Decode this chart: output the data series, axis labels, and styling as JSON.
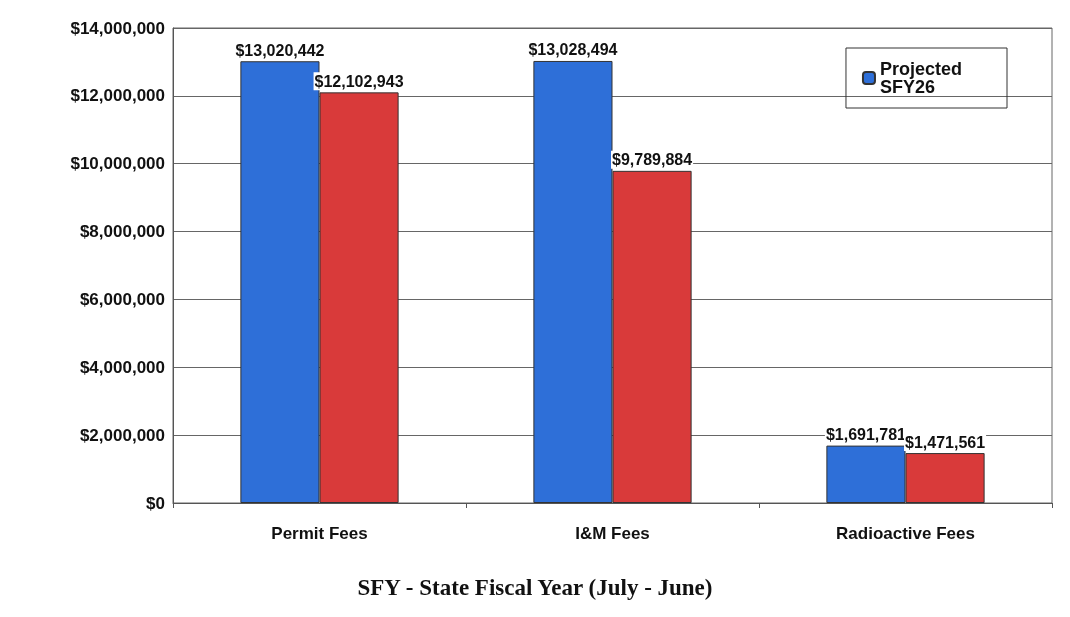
{
  "chart_data": {
    "type": "bar",
    "xlabel": "SFY - State Fiscal Year (July - June)",
    "categories": [
      "Permit Fees",
      "I&M Fees",
      "Radioactive Fees"
    ],
    "series": [
      {
        "name": "Projected SFY26",
        "color": "#2e6fd8",
        "values": [
          13020442,
          13028494,
          1691781
        ],
        "value_labels": [
          "$13,020,442",
          "$13,028,494",
          "$1,691,781"
        ]
      },
      {
        "color": "#d93a3a",
        "values": [
          12102943,
          9789884,
          1471561
        ],
        "value_labels": [
          "$12,102,943",
          "$9,789,884",
          "$1,471,561"
        ]
      }
    ],
    "ylim": [
      0,
      14000000
    ],
    "yticks": [
      {
        "value": 0,
        "label": "$0"
      },
      {
        "value": 2000000,
        "label": "$2,000,000"
      },
      {
        "value": 4000000,
        "label": "$4,000,000"
      },
      {
        "value": 6000000,
        "label": "$6,000,000"
      },
      {
        "value": 8000000,
        "label": "$8,000,000"
      },
      {
        "value": 10000000,
        "label": "$10,000,000"
      },
      {
        "value": 12000000,
        "label": "$12,000,000"
      },
      {
        "value": 14000000,
        "label": "$14,000,000"
      }
    ],
    "grid": "y",
    "legend": "top right"
  }
}
